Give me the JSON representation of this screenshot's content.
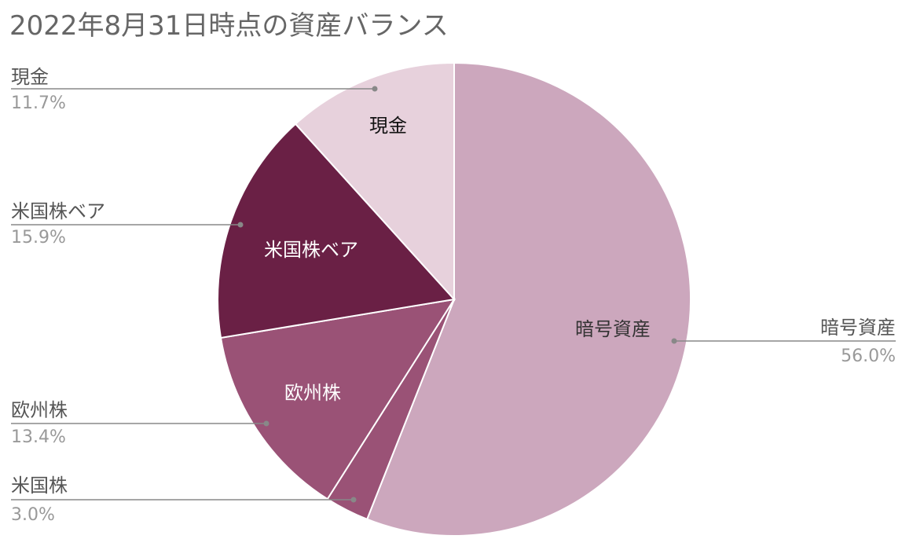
{
  "chart_data": {
    "type": "pie",
    "title": "2022年8月31日時点の資産バランス",
    "slices": [
      {
        "name": "暗号資産",
        "value": 56.0,
        "percent_label": "56.0%",
        "inner_label": "暗号資産",
        "color": "#cca7bd",
        "inner_label_color": "#333333"
      },
      {
        "name": "米国株",
        "value": 3.0,
        "percent_label": "3.0%",
        "inner_label": "",
        "color": "#9a5276",
        "inner_label_color": "#ffffff"
      },
      {
        "name": "欧州株",
        "value": 13.4,
        "percent_label": "13.4%",
        "inner_label": "欧州株",
        "color": "#9a5276",
        "inner_label_color": "#ffffff"
      },
      {
        "name": "米国株ベア",
        "value": 15.9,
        "percent_label": "15.9%",
        "inner_label": "米国株ベア",
        "color": "#6a2045",
        "inner_label_color": "#ffffff"
      },
      {
        "name": "現金",
        "value": 11.7,
        "percent_label": "11.7%",
        "inner_label": "現金",
        "color": "#e7d1dc",
        "inner_label_color": "#111111"
      }
    ],
    "start_angle": "12 o'clock",
    "direction": "clockwise",
    "legend": "callout labels",
    "callout_line_color": "#888888"
  }
}
